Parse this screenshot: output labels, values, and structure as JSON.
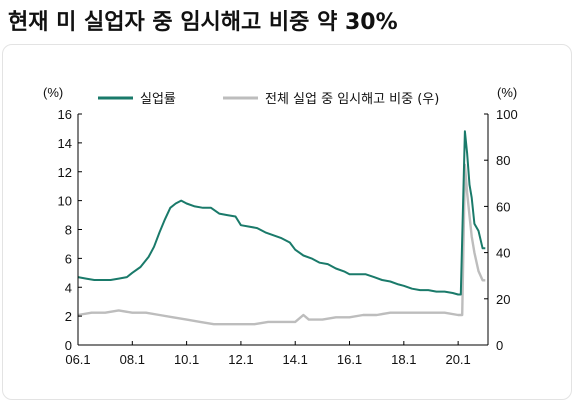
{
  "title": "현재 미 실업자 중 임시해고 비중 약 30%",
  "colors": {
    "unemployment": "#1a7a6a",
    "temp_share": "#bdbdbd"
  },
  "chart_data": {
    "type": "line",
    "title": "현재 미 실업자 중 임시해고 비중 약 30%",
    "left_unit": "(%)",
    "right_unit": "(%)",
    "x_ticks": [
      "06.1",
      "08.1",
      "10.1",
      "12.1",
      "14.1",
      "16.1",
      "18.1",
      "20.1"
    ],
    "y_left_ticks": [
      "0",
      "2",
      "4",
      "6",
      "8",
      "10",
      "12",
      "14",
      "16"
    ],
    "y_right_ticks": [
      "0",
      "20",
      "40",
      "60",
      "80",
      "100"
    ],
    "ylim_left": [
      0,
      16
    ],
    "ylim_right": [
      0,
      100
    ],
    "xlim": [
      2006.0,
      2021.1
    ],
    "legend_position": "top",
    "series": [
      {
        "name": "실업률",
        "axis": "left",
        "color": "#1a7a6a",
        "x": [
          2006.0,
          2006.3,
          2006.6,
          2006.9,
          2007.2,
          2007.5,
          2007.8,
          2008.0,
          2008.3,
          2008.6,
          2008.8,
          2009.0,
          2009.2,
          2009.4,
          2009.6,
          2009.8,
          2010.0,
          2010.3,
          2010.6,
          2010.9,
          2011.2,
          2011.5,
          2011.8,
          2012.0,
          2012.3,
          2012.6,
          2012.9,
          2013.2,
          2013.5,
          2013.8,
          2014.0,
          2014.3,
          2014.6,
          2014.9,
          2015.2,
          2015.5,
          2015.8,
          2016.0,
          2016.3,
          2016.6,
          2016.9,
          2017.2,
          2017.5,
          2017.8,
          2018.0,
          2018.3,
          2018.6,
          2018.9,
          2019.2,
          2019.5,
          2019.8,
          2020.0,
          2020.1,
          2020.25,
          2020.33,
          2020.42,
          2020.5,
          2020.6,
          2020.75,
          2020.9,
          2021.0
        ],
        "values": [
          4.7,
          4.6,
          4.5,
          4.5,
          4.5,
          4.6,
          4.7,
          5.0,
          5.4,
          6.1,
          6.8,
          7.8,
          8.7,
          9.5,
          9.8,
          10.0,
          9.8,
          9.6,
          9.5,
          9.5,
          9.1,
          9.0,
          8.9,
          8.3,
          8.2,
          8.1,
          7.8,
          7.6,
          7.4,
          7.1,
          6.6,
          6.2,
          6.0,
          5.7,
          5.6,
          5.3,
          5.1,
          4.9,
          4.9,
          4.9,
          4.7,
          4.5,
          4.4,
          4.2,
          4.1,
          3.9,
          3.8,
          3.8,
          3.7,
          3.7,
          3.6,
          3.5,
          3.5,
          14.8,
          13.3,
          11.1,
          10.2,
          8.4,
          7.9,
          6.7,
          6.7
        ]
      },
      {
        "name": "전체 실업 중 임시해고 비중 (우)",
        "axis": "right",
        "color": "#bdbdbd",
        "x": [
          2006.0,
          2006.5,
          2007.0,
          2007.5,
          2008.0,
          2008.5,
          2009.0,
          2009.5,
          2010.0,
          2010.5,
          2011.0,
          2011.5,
          2012.0,
          2012.5,
          2013.0,
          2013.5,
          2014.0,
          2014.3,
          2014.5,
          2015.0,
          2015.5,
          2016.0,
          2016.5,
          2017.0,
          2017.5,
          2018.0,
          2018.5,
          2019.0,
          2019.5,
          2020.0,
          2020.15,
          2020.25,
          2020.33,
          2020.42,
          2020.5,
          2020.6,
          2020.75,
          2020.9,
          2021.0
        ],
        "values": [
          13,
          14,
          14,
          15,
          14,
          14,
          13,
          12,
          11,
          10,
          9,
          9,
          9,
          9,
          10,
          10,
          10,
          13,
          11,
          11,
          12,
          12,
          13,
          13,
          14,
          14,
          14,
          14,
          14,
          13,
          13,
          78,
          66,
          56,
          47,
          40,
          32,
          28,
          28
        ]
      }
    ]
  }
}
